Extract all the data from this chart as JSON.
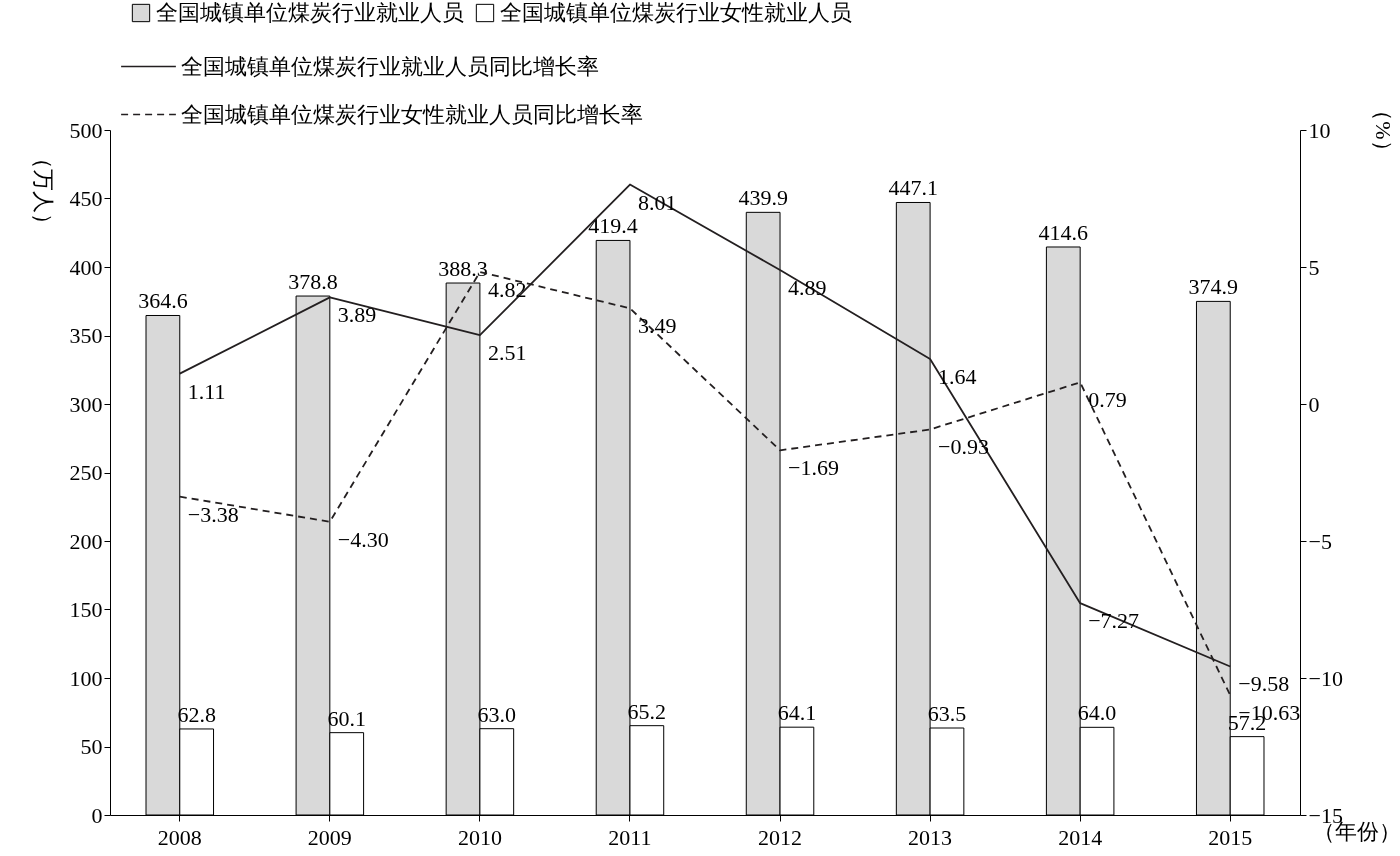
{
  "chart_data": {
    "type": "bar",
    "xlabel": "（年份）",
    "ylabel": "（万人）",
    "y2label": "（%）",
    "categories": [
      "2008",
      "2009",
      "2010",
      "2011",
      "2012",
      "2013",
      "2014",
      "2015"
    ],
    "series": [
      {
        "name": "全国城镇单位煤炭行业就业人员",
        "color": "#d9d9d9",
        "values": [
          364.6,
          378.8,
          388.3,
          419.4,
          439.9,
          447.1,
          414.6,
          374.9
        ],
        "value_labels": [
          "364.6",
          "378.8",
          "388.3",
          "419.4",
          "439.9",
          "447.1",
          "414.6",
          "374.9"
        ]
      },
      {
        "name": "全国城镇单位煤炭行业女性就业人员",
        "color": "#ffffff",
        "values": [
          62.8,
          60.1,
          63.0,
          65.2,
          64.1,
          63.5,
          64.0,
          57.2
        ],
        "value_labels": [
          "62.8",
          "60.1",
          "63.0",
          "65.2",
          "64.1",
          "63.5",
          "64.0",
          "57.2"
        ]
      },
      {
        "name": "全国城镇单位煤炭行业就业人员同比增长率",
        "type": "line",
        "axis": "y2",
        "line_style": "solid",
        "color": "#231f20",
        "values": [
          1.11,
          3.89,
          2.51,
          8.01,
          4.89,
          1.64,
          -7.27,
          -9.58
        ],
        "value_labels": [
          "1.11",
          "3.89",
          "2.51",
          "8.01",
          "4.89",
          "1.64",
          "−7.27",
          "−9.58"
        ]
      },
      {
        "name": "全国城镇单位煤炭行业女性就业人员同比增长率",
        "type": "line",
        "axis": "y2",
        "line_style": "dashed",
        "color": "#231f20",
        "values": [
          -3.38,
          -4.3,
          4.82,
          3.49,
          -1.69,
          -0.93,
          0.79,
          -10.63
        ],
        "value_labels": [
          "−3.38",
          "−4.30",
          "4.82",
          "3.49",
          "−1.69",
          "−0.93",
          "0.79",
          "−10.63"
        ]
      }
    ],
    "ylim": [
      0,
      500
    ],
    "yticks": [
      0,
      50,
      100,
      150,
      200,
      250,
      300,
      350,
      400,
      450,
      500
    ],
    "y2lim": [
      -15,
      10
    ],
    "y2ticks": [
      {
        "value": -15,
        "label": "−15"
      },
      {
        "value": -10,
        "label": "−10"
      },
      {
        "value": -5,
        "label": "−5"
      },
      0,
      5,
      10
    ],
    "legend": "top"
  }
}
